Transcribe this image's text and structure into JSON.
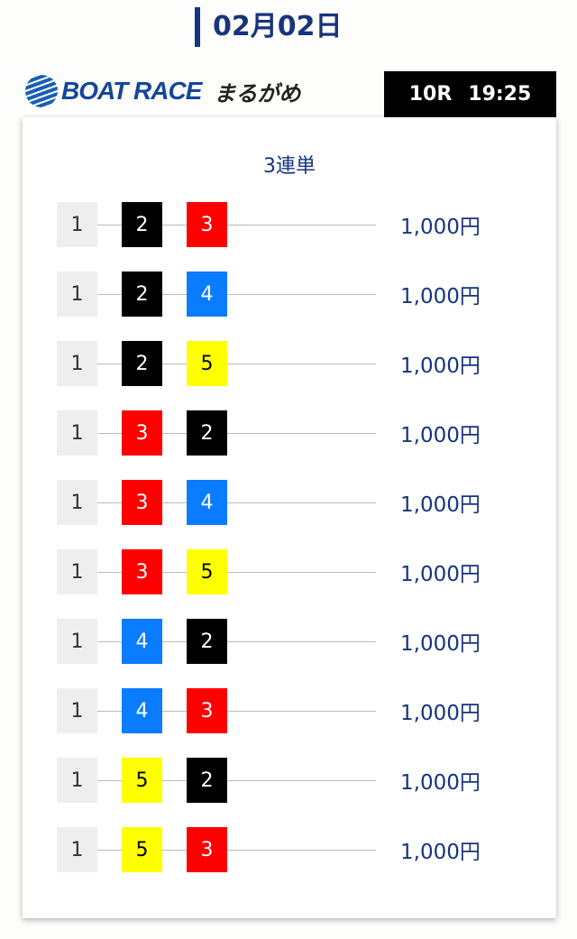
{
  "header": {
    "date": "02月02日",
    "logo_text": "BOAT RACE",
    "venue": "まるがめ",
    "race": "10R",
    "time": "19:25"
  },
  "bet_type": "3連単",
  "boat_colors": {
    "1": {
      "bg": "#eeeeee",
      "fg": "#333333"
    },
    "2": {
      "bg": "#000000",
      "fg": "#ffffff"
    },
    "3": {
      "bg": "#ff0000",
      "fg": "#ffffff"
    },
    "4": {
      "bg": "#0a7cff",
      "fg": "#ffffff"
    },
    "5": {
      "bg": "#ffff00",
      "fg": "#000000"
    }
  },
  "bets": [
    {
      "first": "1",
      "second": "2",
      "third": "3",
      "amount": "1,000円"
    },
    {
      "first": "1",
      "second": "2",
      "third": "4",
      "amount": "1,000円"
    },
    {
      "first": "1",
      "second": "2",
      "third": "5",
      "amount": "1,000円"
    },
    {
      "first": "1",
      "second": "3",
      "third": "2",
      "amount": "1,000円"
    },
    {
      "first": "1",
      "second": "3",
      "third": "4",
      "amount": "1,000円"
    },
    {
      "first": "1",
      "second": "3",
      "third": "5",
      "amount": "1,000円"
    },
    {
      "first": "1",
      "second": "4",
      "third": "2",
      "amount": "1,000円"
    },
    {
      "first": "1",
      "second": "4",
      "third": "3",
      "amount": "1,000円"
    },
    {
      "first": "1",
      "second": "5",
      "third": "2",
      "amount": "1,000円"
    },
    {
      "first": "1",
      "second": "5",
      "third": "3",
      "amount": "1,000円"
    }
  ]
}
